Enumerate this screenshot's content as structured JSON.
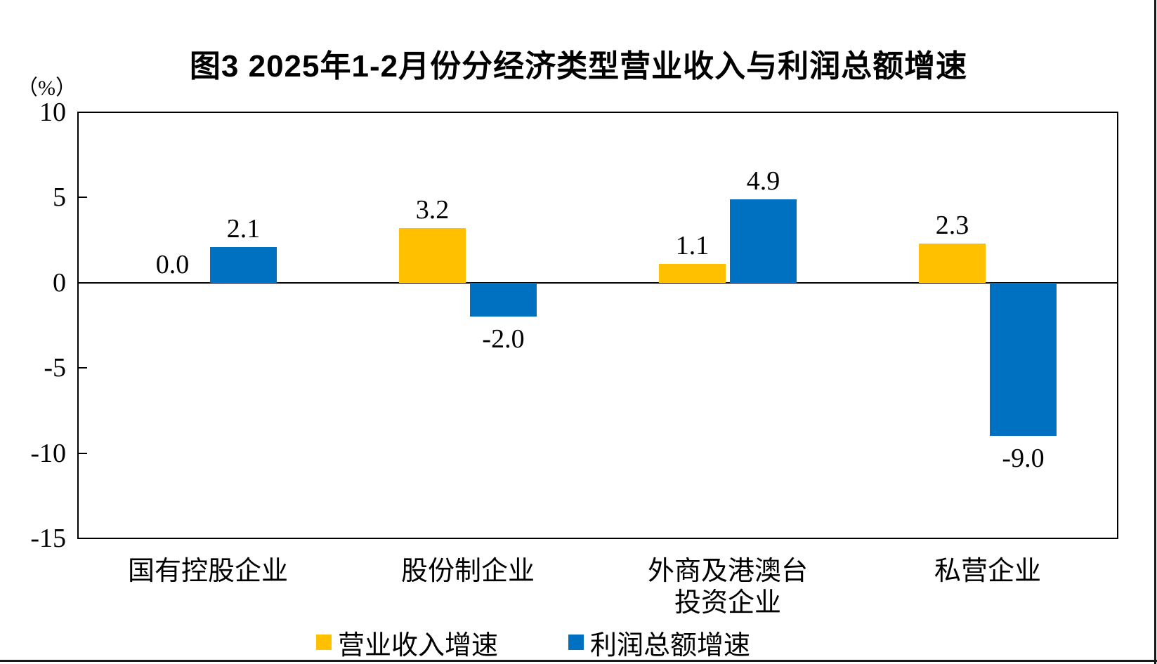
{
  "title": "图3 2025年1-2月份分经济类型营业收入与利润总额增速",
  "y_axis_unit": "（%）",
  "chart_data": {
    "type": "bar",
    "categories": [
      "国有控股企业",
      "股份制企业",
      "外商及港澳台投资企业",
      "私营企业"
    ],
    "category_lines": [
      [
        "国有控股企业"
      ],
      [
        "股份制企业"
      ],
      [
        "外商及港澳台",
        "投资企业"
      ],
      [
        "私营企业"
      ]
    ],
    "series": [
      {
        "name": "营业收入增速",
        "color": "#FFC000",
        "values": [
          0.0,
          3.2,
          1.1,
          2.3
        ]
      },
      {
        "name": "利润总额增速",
        "color": "#0070C0",
        "values": [
          2.1,
          -2.0,
          4.9,
          -9.0
        ]
      }
    ],
    "data_labels": [
      "0.0",
      "3.2",
      "1.1",
      "2.3",
      "2.1",
      "-2.0",
      "4.9",
      "-9.0"
    ],
    "title": "图3 2025年1-2月份分经济类型营业收入与利润总额增速",
    "xlabel": "",
    "ylabel": "（%）",
    "ylim": [
      -15,
      10
    ],
    "yticks": [
      "10",
      "5",
      "0",
      "-5",
      "-10",
      "-15"
    ],
    "ytick_values": [
      10,
      5,
      0,
      -5,
      -10,
      -15
    ],
    "grid": false,
    "legend_position": "bottom",
    "axis_color": "#000000",
    "show_data_labels": true
  }
}
